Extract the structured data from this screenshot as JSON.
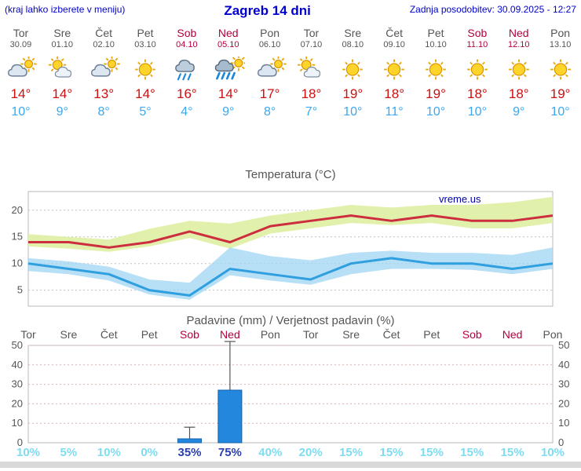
{
  "header": {
    "menu_note": "(kraj lahko izberete v meniju)",
    "title": "Zagreb 14 dni",
    "updated": "Zadnja posodobitev: 30.09.2025 - 12:27"
  },
  "colors": {
    "accent_blue": "#0000cc",
    "weekday_gray": "#555555",
    "weekend_red": "#b3003c",
    "tmax_red": "#cc0f0f",
    "tmin_blue": "#3aa7f0",
    "max_band": "#dff0a6",
    "min_band": "#9fd4f2",
    "max_line": "#cc2e40",
    "min_line": "#2f9fe0",
    "bar_blue": "#2388dd",
    "bar_border": "#1262a8",
    "prob_cyan": "#7edcf0",
    "prob_strong": "#2b3fae",
    "watermark_blue": "#0000a8",
    "grid_gray": "#c0c0c0",
    "grid_pink": "#dfb0b0"
  },
  "days": [
    {
      "name": "Tor",
      "date": "30.09",
      "weekend": false,
      "icon": "cloudy",
      "tmax": "14°",
      "tmin": "10°"
    },
    {
      "name": "Sre",
      "date": "01.10",
      "weekend": false,
      "icon": "partly",
      "tmax": "14°",
      "tmin": "9°"
    },
    {
      "name": "Čet",
      "date": "02.10",
      "weekend": false,
      "icon": "cloudy",
      "tmax": "13°",
      "tmin": "8°"
    },
    {
      "name": "Pet",
      "date": "03.10",
      "weekend": false,
      "icon": "sunny",
      "tmax": "14°",
      "tmin": "5°"
    },
    {
      "name": "Sob",
      "date": "04.10",
      "weekend": true,
      "icon": "rain",
      "tmax": "16°",
      "tmin": "4°"
    },
    {
      "name": "Ned",
      "date": "05.10",
      "weekend": true,
      "icon": "rainsun",
      "tmax": "14°",
      "tmin": "9°"
    },
    {
      "name": "Pon",
      "date": "06.10",
      "weekend": false,
      "icon": "cloudy",
      "tmax": "17°",
      "tmin": "8°"
    },
    {
      "name": "Tor",
      "date": "07.10",
      "weekend": false,
      "icon": "partly",
      "tmax": "18°",
      "tmin": "7°"
    },
    {
      "name": "Sre",
      "date": "08.10",
      "weekend": false,
      "icon": "sunny",
      "tmax": "19°",
      "tmin": "10°"
    },
    {
      "name": "Čet",
      "date": "09.10",
      "weekend": false,
      "icon": "sunny",
      "tmax": "18°",
      "tmin": "11°"
    },
    {
      "name": "Pet",
      "date": "10.10",
      "weekend": false,
      "icon": "sunny",
      "tmax": "19°",
      "tmin": "10°"
    },
    {
      "name": "Sob",
      "date": "11.10",
      "weekend": true,
      "icon": "sunny",
      "tmax": "18°",
      "tmin": "10°"
    },
    {
      "name": "Ned",
      "date": "12.10",
      "weekend": true,
      "icon": "sunny",
      "tmax": "18°",
      "tmin": "9°"
    },
    {
      "name": "Pon",
      "date": "13.10",
      "weekend": false,
      "icon": "sunny",
      "tmax": "19°",
      "tmin": "10°"
    }
  ],
  "chart_data": [
    {
      "type": "area+line",
      "title": "Temperatura (°C)",
      "watermark": "vreme.us",
      "ylim": [
        2,
        23.5
      ],
      "yticks": [
        5,
        10,
        15,
        20
      ],
      "categories": [
        "Tor 30.09",
        "Sre 01.10",
        "Čet 02.10",
        "Pet 03.10",
        "Sob 04.10",
        "Ned 05.10",
        "Pon 06.10",
        "Tor 07.10",
        "Sre 08.10",
        "Čet 09.10",
        "Pet 10.10",
        "Sob 11.10",
        "Ned 12.10",
        "Pon 13.10"
      ],
      "series": [
        {
          "name": "max_band_upper",
          "values": [
            15.5,
            15,
            14.5,
            16.5,
            18,
            17.5,
            19,
            20,
            21,
            20.5,
            21,
            21,
            21.5,
            22.5
          ]
        },
        {
          "name": "max_band_lower",
          "values": [
            13.2,
            12.8,
            12.2,
            13.2,
            14.8,
            12.8,
            15.6,
            16.6,
            17.6,
            17.2,
            17.6,
            16.6,
            16.6,
            17.6
          ]
        },
        {
          "name": "tmax",
          "values": [
            14,
            14,
            13,
            14,
            16,
            14,
            17,
            18,
            19,
            18,
            19,
            18,
            18,
            19
          ]
        },
        {
          "name": "min_band_upper",
          "values": [
            11,
            10.4,
            9.4,
            7,
            6.4,
            13,
            11.4,
            10.6,
            12,
            12.4,
            12,
            12,
            11.6,
            13
          ]
        },
        {
          "name": "min_band_lower",
          "values": [
            8.6,
            8,
            6.8,
            4.2,
            3.2,
            7.8,
            6.8,
            6,
            8,
            9,
            9,
            8.8,
            8,
            9
          ]
        },
        {
          "name": "tmin",
          "values": [
            10,
            9,
            8,
            5,
            4,
            9,
            8,
            7,
            10,
            11,
            10,
            10,
            9,
            10
          ]
        }
      ]
    },
    {
      "type": "bar",
      "title": "Padavine (mm) / Verjetnost padavin (%)",
      "ylim": [
        0,
        50
      ],
      "yticks": [
        0,
        10,
        20,
        30,
        40,
        50
      ],
      "categories": [
        "Tor",
        "Sre",
        "Čet",
        "Pet",
        "Sob",
        "Ned",
        "Pon",
        "Tor",
        "Sre",
        "Čet",
        "Pet",
        "Sob",
        "Ned",
        "Pon"
      ],
      "values": [
        0,
        0,
        0,
        0,
        2,
        27,
        0,
        0,
        0,
        0,
        0,
        0,
        0,
        0
      ],
      "whisker_high": [
        0,
        0,
        0,
        0,
        8,
        52,
        0,
        0,
        0,
        0,
        0,
        0,
        0,
        0
      ],
      "probabilities": [
        {
          "text": "10%",
          "strong": false
        },
        {
          "text": "5%",
          "strong": false
        },
        {
          "text": "10%",
          "strong": false
        },
        {
          "text": "0%",
          "strong": false
        },
        {
          "text": "35%",
          "strong": true
        },
        {
          "text": "75%",
          "strong": true
        },
        {
          "text": "40%",
          "strong": false
        },
        {
          "text": "20%",
          "strong": false
        },
        {
          "text": "15%",
          "strong": false
        },
        {
          "text": "15%",
          "strong": false
        },
        {
          "text": "15%",
          "strong": false
        },
        {
          "text": "15%",
          "strong": false
        },
        {
          "text": "15%",
          "strong": false
        },
        {
          "text": "10%",
          "strong": false
        }
      ]
    }
  ]
}
